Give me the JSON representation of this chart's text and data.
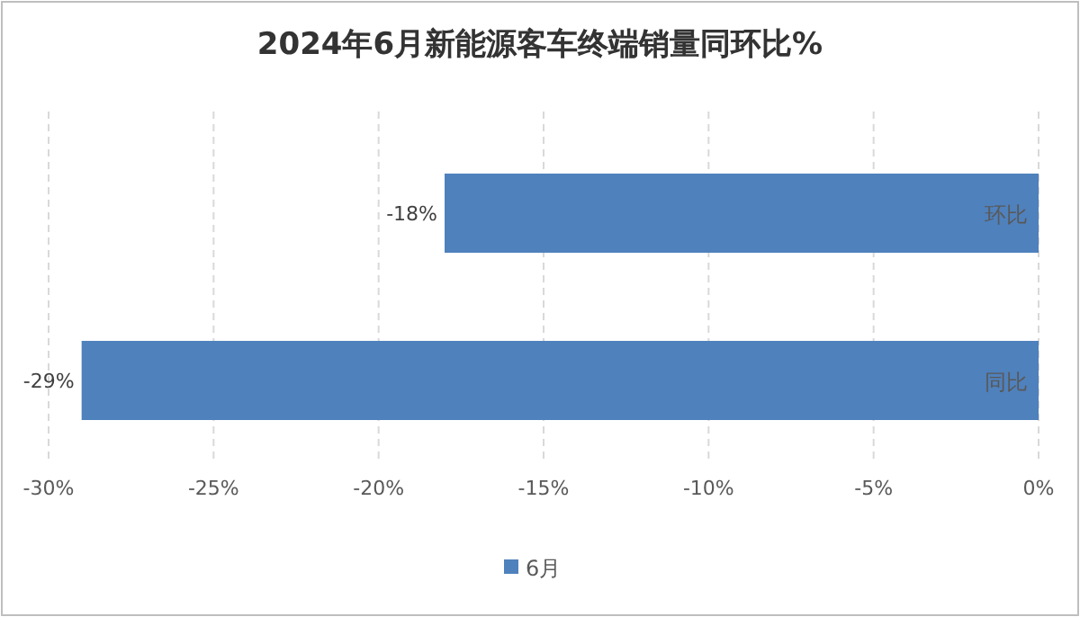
{
  "chart_data": {
    "type": "bar",
    "orientation": "horizontal",
    "title": "2024年6月新能源客车终端销量同环比%",
    "categories": [
      "环比",
      "同比"
    ],
    "series": [
      {
        "name": "6月",
        "color": "#4f81bd",
        "values": [
          -18,
          -29
        ],
        "value_labels": [
          "-18%",
          "-29%"
        ]
      }
    ],
    "xlim": [
      -30,
      0
    ],
    "xticks": [
      {
        "value": -30,
        "label": "-30%"
      },
      {
        "value": -25,
        "label": "-25%"
      },
      {
        "value": -20,
        "label": "-20%"
      },
      {
        "value": -15,
        "label": "-15%"
      },
      {
        "value": -10,
        "label": "-10%"
      },
      {
        "value": -5,
        "label": "-5%"
      },
      {
        "value": 0,
        "label": "0%"
      }
    ],
    "grid": "x",
    "legend": "bottom"
  }
}
